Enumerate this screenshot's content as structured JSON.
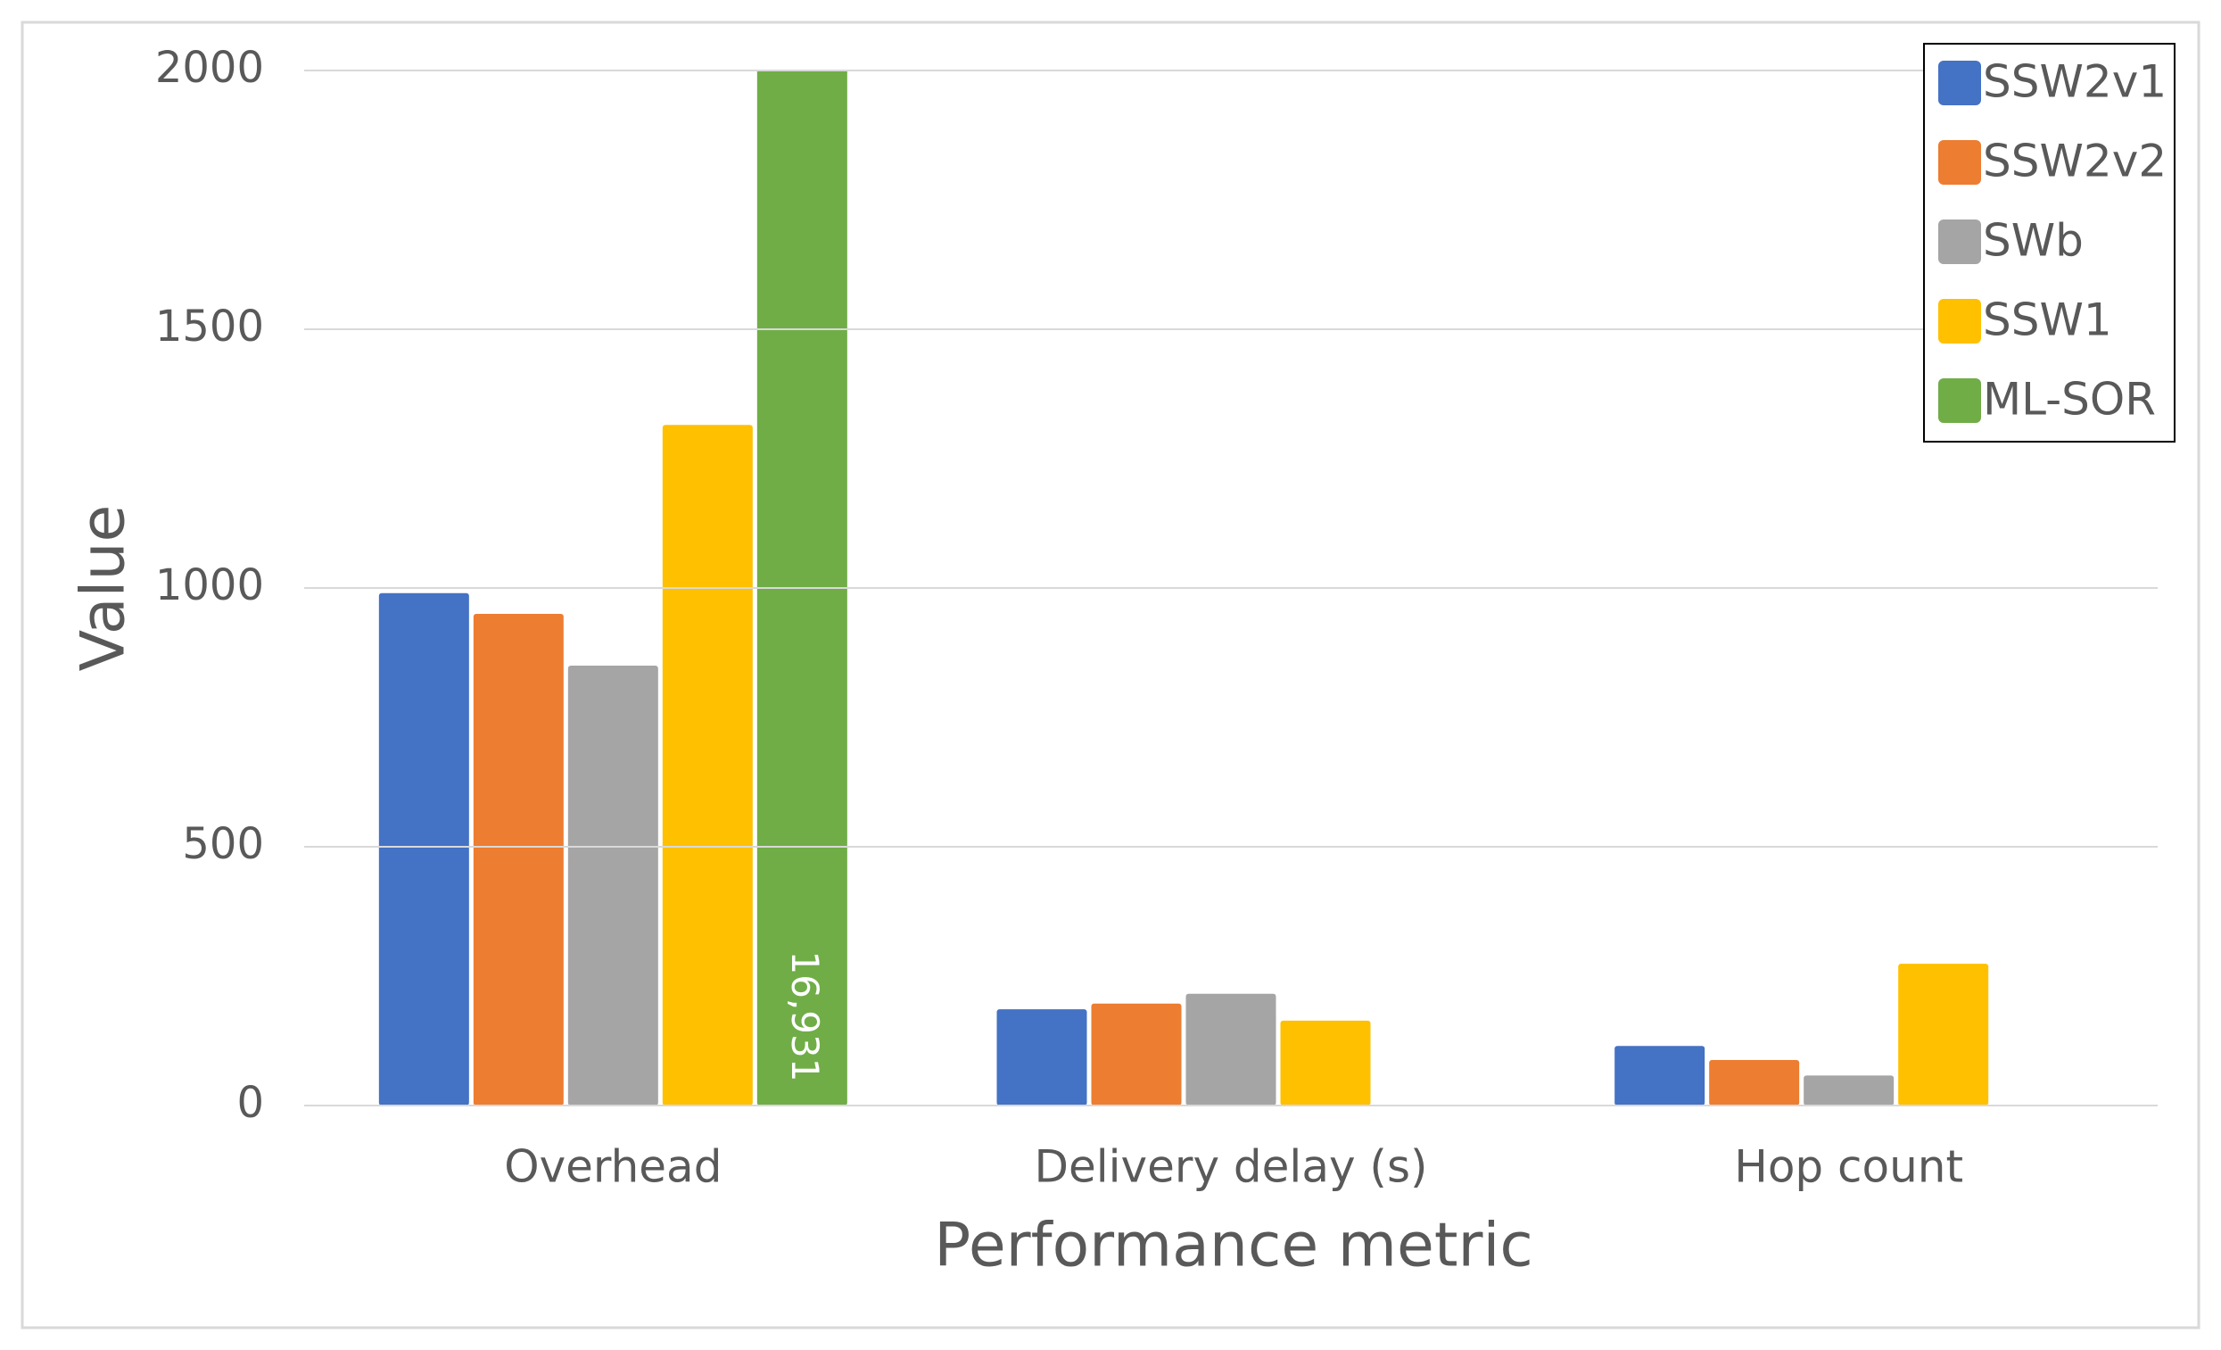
{
  "chart_data": {
    "type": "bar",
    "x_label": "Performance metric",
    "y_label": "Value",
    "categories": [
      "Overhead",
      "Delivery delay (s)",
      "Hop count"
    ],
    "series": [
      {
        "name": "SSW2v1",
        "color": "#4472c4",
        "values": [
          990,
          186,
          115
        ]
      },
      {
        "name": "SSW2v2",
        "color": "#ed7d31",
        "values": [
          950,
          197,
          88
        ]
      },
      {
        "name": "SWb",
        "color": "#a5a5a5",
        "values": [
          850,
          216,
          58
        ]
      },
      {
        "name": "SSW1",
        "color": "#ffc000",
        "values": [
          1315,
          164,
          274
        ]
      },
      {
        "name": "ML-SOR",
        "color": "#70ad47",
        "values": [
          16931,
          null,
          null
        ],
        "value_labels": [
          "16,931",
          null,
          null
        ]
      }
    ],
    "ylim": [
      0,
      2000
    ],
    "yticks": [
      0,
      500,
      1000,
      1500,
      2000
    ],
    "grid": true,
    "legend": "upper right"
  }
}
